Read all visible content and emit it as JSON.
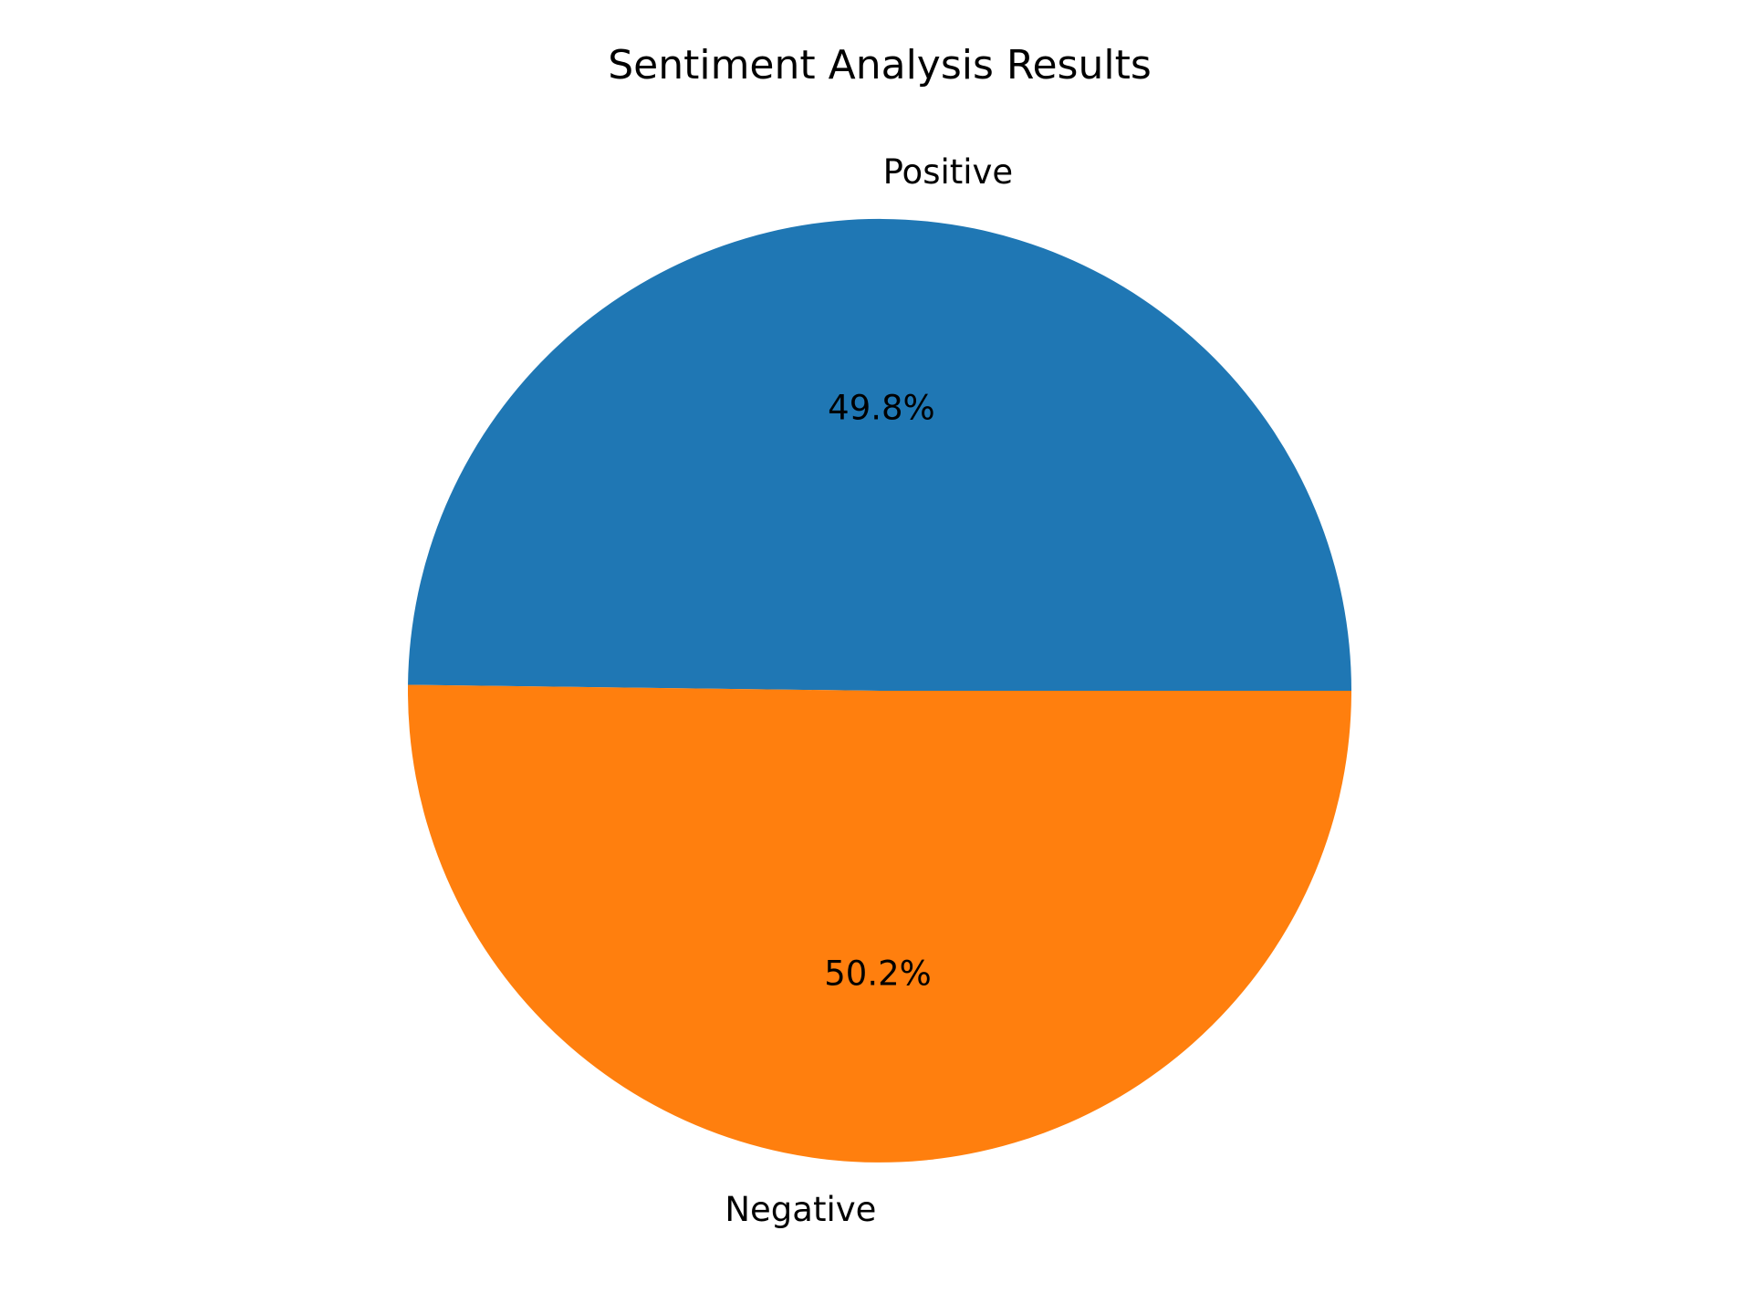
{
  "chart_data": {
    "type": "pie",
    "title": "Sentiment Analysis Results",
    "slices": [
      {
        "label": "Positive",
        "value": 49.8,
        "pct_label": "49.8%",
        "color": "#1f77b4"
      },
      {
        "label": "Negative",
        "value": 50.2,
        "pct_label": "50.2%",
        "color": "#ff7f0e"
      }
    ],
    "start_angle_deg": 0,
    "direction": "counterclockwise",
    "legend": "none"
  }
}
